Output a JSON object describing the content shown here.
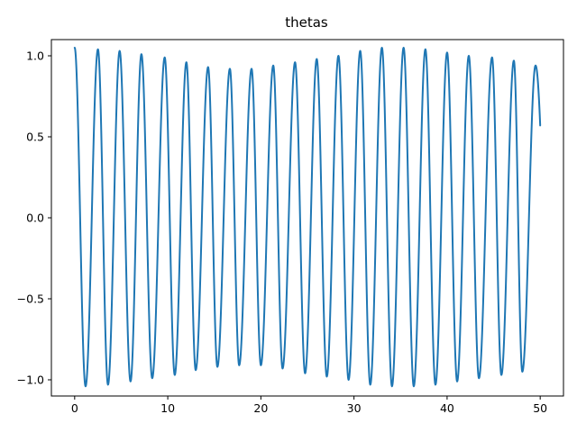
{
  "chart_data": {
    "type": "line",
    "title": "thetas",
    "xlabel": "",
    "ylabel": "",
    "xlim": [
      -2.5,
      52.5
    ],
    "ylim": [
      -1.1,
      1.1
    ],
    "xticks": [
      0,
      10,
      20,
      30,
      40,
      50
    ],
    "xtick_labels": [
      "0",
      "10",
      "20",
      "30",
      "40",
      "50"
    ],
    "yticks": [
      -1.0,
      -0.5,
      0.0,
      0.5,
      1.0
    ],
    "ytick_labels": [
      "−1.0",
      "−0.5",
      "0.0",
      "0.5",
      "1.0"
    ],
    "grid": false,
    "legend": "none",
    "series": [
      {
        "color": "#1f77b4",
        "x_range": [
          0,
          50
        ],
        "x_peaks": [
          0.0,
          2.5,
          4.83,
          7.17,
          9.67,
          12.0,
          14.33,
          16.67,
          19.0,
          21.33,
          23.67,
          26.0,
          28.33,
          30.67,
          33.0,
          35.33,
          37.67,
          40.0,
          42.33,
          44.83,
          47.17,
          49.5
        ],
        "peak_values": [
          1.05,
          1.04,
          1.03,
          1.01,
          0.99,
          0.96,
          0.93,
          0.92,
          0.92,
          0.94,
          0.96,
          0.98,
          1.0,
          1.03,
          1.05,
          1.05,
          1.04,
          1.02,
          1.0,
          0.99,
          0.97,
          0.94
        ],
        "x_troughs": [
          1.17,
          3.58,
          6.0,
          8.33,
          10.75,
          13.0,
          15.33,
          17.67,
          20.0,
          22.33,
          24.75,
          27.08,
          29.42,
          31.75,
          34.08,
          36.42,
          38.75,
          41.08,
          43.42,
          45.83,
          48.08
        ],
        "trough_values": [
          -1.04,
          -1.03,
          -1.01,
          -0.99,
          -0.97,
          -0.94,
          -0.92,
          -0.91,
          -0.91,
          -0.93,
          -0.96,
          -0.98,
          -1.0,
          -1.03,
          -1.04,
          -1.04,
          -1.03,
          -1.01,
          -0.99,
          -0.97,
          -0.95
        ],
        "end_value": 0.57
      }
    ]
  }
}
